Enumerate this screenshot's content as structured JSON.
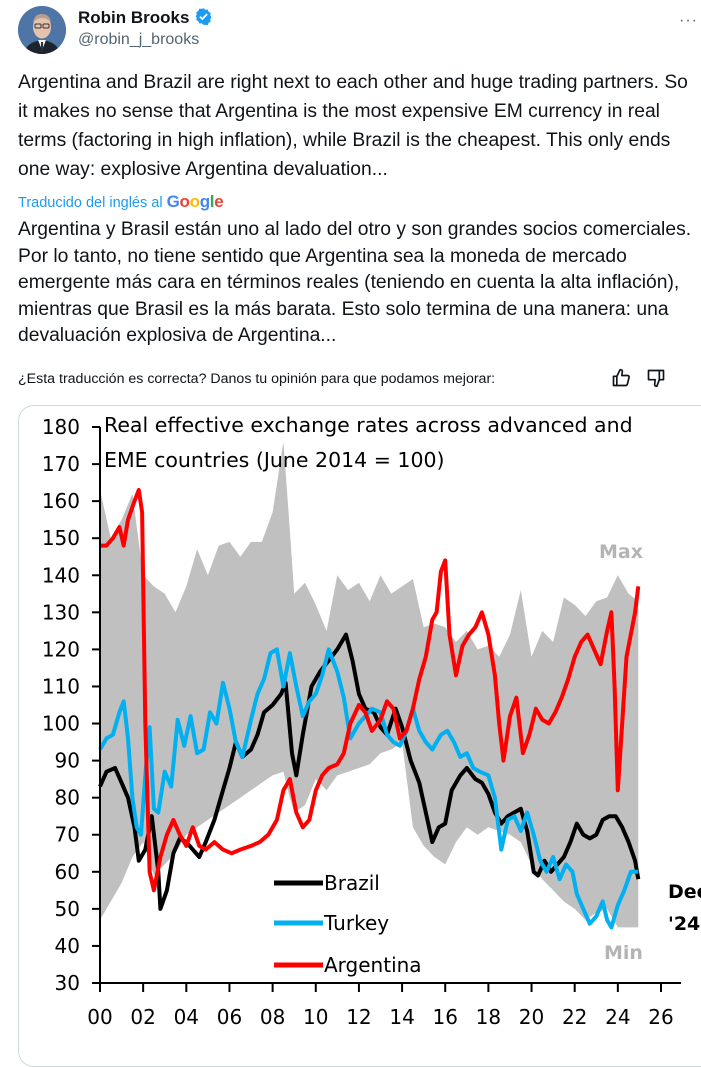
{
  "author": {
    "name": "Robin Brooks",
    "handle": "@robin_j_brooks",
    "verified": true,
    "verified_color": "#1d9bf0"
  },
  "more_menu_label": "···",
  "tweet_text": "Argentina and Brazil are right next to each other and huge trading partners. So it makes no sense that Argentina is the most expensive EM currency in real terms (factoring in high inflation), while Brazil is the cheapest. This only ends one way: explosive Argentina devaluation...",
  "translation": {
    "label": "Traducido del inglés al",
    "provider": "Google",
    "text": "Argentina y Brasil están uno al lado del otro y son grandes socios comerciales. Por lo tanto, no tiene sentido que Argentina sea la moneda de mercado emergente más cara en términos reales (teniendo en cuenta la alta inflación), mientras que Brasil es la más barata. Esto solo termina de una manera: una devaluación explosiva de Argentina...",
    "feedback_prompt": "¿Esta traducción es correcta? Danos tu opinión para que podamos mejorar:",
    "link_color": "#1d9bf0"
  },
  "chart_data": {
    "type": "line",
    "title": "Real effective exchange rates across advanced and EME countries (June 2014 = 100)",
    "title_lines": [
      "Real effective exchange rates across advanced and",
      "EME countries (June 2014 = 100)"
    ],
    "xlabel": "",
    "ylabel": "",
    "xlim": [
      2000,
      2027
    ],
    "ylim": [
      30,
      180
    ],
    "yticks": [
      30,
      40,
      50,
      60,
      70,
      80,
      90,
      100,
      110,
      120,
      130,
      140,
      150,
      160,
      170,
      180
    ],
    "xticks": [
      2000,
      2002,
      2004,
      2006,
      2008,
      2010,
      2012,
      2014,
      2016,
      2018,
      2020,
      2022,
      2024,
      2026
    ],
    "xtick_labels": [
      "00",
      "02",
      "04",
      "06",
      "08",
      "10",
      "12",
      "14",
      "16",
      "18",
      "20",
      "22",
      "24",
      "26"
    ],
    "grid": false,
    "legend_placement": "bottom-center",
    "band": {
      "name": "Max/Min range",
      "color": "#c0c0c0",
      "x": [
        2000,
        2000.5,
        2001,
        2001.5,
        2002,
        2002.5,
        2003,
        2003.5,
        2004,
        2004.5,
        2005,
        2005.5,
        2006,
        2006.5,
        2007,
        2007.5,
        2008,
        2008.5,
        2008.8,
        2009,
        2009.5,
        2010,
        2010.5,
        2011,
        2011.5,
        2012,
        2012.5,
        2013,
        2013.5,
        2014,
        2014.5,
        2015,
        2015.5,
        2016,
        2016.5,
        2017,
        2017.5,
        2018,
        2018.5,
        2019,
        2019.5,
        2020,
        2020.5,
        2021,
        2021.5,
        2022,
        2022.5,
        2023,
        2023.5,
        2024,
        2024.5,
        2024.95
      ],
      "max": [
        163,
        150,
        155,
        162,
        140,
        137,
        135,
        130,
        137,
        147,
        140,
        148,
        149,
        145,
        149,
        149,
        157,
        176,
        152,
        135,
        138,
        132,
        125,
        140,
        136,
        138,
        133,
        140,
        135,
        137,
        139,
        126,
        127,
        126,
        122,
        125,
        120,
        121,
        118,
        124,
        136,
        118,
        125,
        122,
        134,
        132,
        129,
        133,
        134,
        140,
        135,
        133
      ],
      "min": [
        47,
        52,
        57,
        64,
        68,
        59,
        62,
        65,
        70,
        72,
        74,
        76,
        78,
        80,
        82,
        84,
        86,
        87,
        80,
        76,
        78,
        85,
        82,
        86,
        87,
        88,
        89,
        92,
        93,
        95,
        72,
        67,
        64,
        62,
        68,
        72,
        70,
        72,
        71,
        70,
        68,
        62,
        58,
        55,
        52,
        50,
        47,
        49,
        50,
        45,
        45,
        45
      ]
    },
    "series": [
      {
        "name": "Brazil",
        "color": "#000000",
        "x": [
          2000,
          2000.3,
          2000.7,
          2001,
          2001.3,
          2001.6,
          2001.8,
          2002.1,
          2002.4,
          2002.7,
          2002.8,
          2003.1,
          2003.4,
          2003.7,
          2004,
          2004.3,
          2004.6,
          2004.9,
          2005.3,
          2005.6,
          2006,
          2006.3,
          2006.6,
          2007,
          2007.3,
          2007.6,
          2008,
          2008.4,
          2008.6,
          2008.9,
          2009.1,
          2009.4,
          2009.8,
          2010.2,
          2010.6,
          2011,
          2011.4,
          2011.7,
          2012,
          2012.3,
          2012.7,
          2013,
          2013.3,
          2013.7,
          2014,
          2014.4,
          2014.8,
          2015.1,
          2015.4,
          2015.7,
          2016,
          2016.3,
          2016.7,
          2017,
          2017.4,
          2017.7,
          2018,
          2018.3,
          2018.6,
          2018.9,
          2019.2,
          2019.5,
          2019.8,
          2020.1,
          2020.3,
          2020.6,
          2020.9,
          2021.2,
          2021.5,
          2021.8,
          2022.1,
          2022.4,
          2022.7,
          2023,
          2023.3,
          2023.6,
          2023.9,
          2024.2,
          2024.5,
          2024.8,
          2024.95
        ],
        "values": [
          83,
          87,
          88,
          84,
          80,
          72,
          63,
          66,
          75,
          60,
          50,
          55,
          65,
          69,
          68,
          66,
          64,
          68,
          74,
          80,
          88,
          95,
          91,
          93,
          97,
          103,
          105,
          108,
          111,
          92,
          86,
          97,
          110,
          114,
          117,
          120,
          124,
          117,
          108,
          104,
          103,
          99,
          97,
          104,
          99,
          90,
          84,
          76,
          68,
          72,
          73,
          82,
          86,
          88,
          85,
          84,
          81,
          76,
          73,
          75,
          76,
          77,
          71,
          60,
          59,
          63,
          60,
          62,
          64,
          68,
          73,
          70,
          69,
          70,
          74,
          75,
          75,
          72,
          68,
          63,
          58
        ],
        "last_label": "Dec '24"
      },
      {
        "name": "Turkey",
        "color": "#00b0f0",
        "x": [
          2000,
          2000.3,
          2000.6,
          2000.9,
          2001.1,
          2001.3,
          2001.5,
          2001.7,
          2001.9,
          2002.1,
          2002.3,
          2002.5,
          2002.7,
          2003,
          2003.3,
          2003.6,
          2003.9,
          2004.2,
          2004.5,
          2004.8,
          2005.1,
          2005.4,
          2005.7,
          2006,
          2006.3,
          2006.6,
          2007,
          2007.3,
          2007.6,
          2007.9,
          2008.2,
          2008.5,
          2008.8,
          2009.1,
          2009.4,
          2009.7,
          2010,
          2010.3,
          2010.6,
          2011,
          2011.3,
          2011.6,
          2012,
          2012.3,
          2012.6,
          2013,
          2013.3,
          2013.6,
          2013.9,
          2014.2,
          2014.5,
          2014.8,
          2015.1,
          2015.4,
          2015.8,
          2016.1,
          2016.4,
          2016.7,
          2017,
          2017.3,
          2017.6,
          2018,
          2018.3,
          2018.6,
          2018.9,
          2019.2,
          2019.5,
          2019.8,
          2020.1,
          2020.4,
          2020.7,
          2021,
          2021.3,
          2021.6,
          2021.9,
          2022.1,
          2022.4,
          2022.7,
          2023,
          2023.3,
          2023.5,
          2023.7,
          2024,
          2024.3,
          2024.6,
          2024.95
        ],
        "values": [
          93,
          96,
          97,
          103,
          106,
          96,
          80,
          72,
          70,
          86,
          99,
          77,
          76,
          87,
          83,
          101,
          94,
          102,
          92,
          93,
          103,
          100,
          111,
          104,
          95,
          91,
          101,
          108,
          112,
          119,
          120,
          110,
          119,
          110,
          102,
          106,
          108,
          113,
          120,
          114,
          107,
          96,
          100,
          102,
          104,
          103,
          97,
          95,
          94,
          98,
          104,
          98,
          95,
          93,
          97,
          98,
          95,
          91,
          92,
          88,
          87,
          86,
          80,
          66,
          74,
          75,
          71,
          76,
          70,
          63,
          60,
          64,
          58,
          62,
          60,
          54,
          50,
          46,
          48,
          52,
          47,
          45,
          51,
          55,
          60,
          60
        ]
      },
      {
        "name": "Argentina",
        "color": "#ff0000",
        "x": [
          2000,
          2000.3,
          2000.6,
          2000.9,
          2001.1,
          2001.3,
          2001.6,
          2001.8,
          2001.95,
          2002.1,
          2002.3,
          2002.5,
          2002.8,
          2003.1,
          2003.4,
          2003.7,
          2004,
          2004.3,
          2004.6,
          2004.9,
          2005.3,
          2005.7,
          2006.1,
          2006.5,
          2007,
          2007.4,
          2007.8,
          2008.2,
          2008.5,
          2008.8,
          2009.1,
          2009.4,
          2009.7,
          2010,
          2010.3,
          2010.6,
          2011,
          2011.3,
          2011.6,
          2012,
          2012.3,
          2012.6,
          2013,
          2013.3,
          2013.6,
          2013.9,
          2014.2,
          2014.5,
          2014.8,
          2015.1,
          2015.4,
          2015.6,
          2015.8,
          2016,
          2016.2,
          2016.5,
          2016.8,
          2017.1,
          2017.4,
          2017.7,
          2018,
          2018.3,
          2018.5,
          2018.7,
          2019,
          2019.3,
          2019.6,
          2019.9,
          2020.2,
          2020.5,
          2020.8,
          2021.1,
          2021.4,
          2021.7,
          2022,
          2022.3,
          2022.6,
          2022.9,
          2023.2,
          2023.5,
          2023.7,
          2023.85,
          2024,
          2024.2,
          2024.4,
          2024.6,
          2024.8,
          2024.95
        ],
        "values": [
          148,
          148,
          150,
          153,
          148,
          155,
          160,
          163,
          157,
          100,
          60,
          55,
          64,
          70,
          74,
          70,
          67,
          72,
          67,
          66,
          68,
          66,
          65,
          66,
          67,
          68,
          70,
          74,
          82,
          85,
          76,
          72,
          74,
          82,
          86,
          88,
          89,
          92,
          100,
          105,
          103,
          98,
          101,
          106,
          104,
          96,
          98,
          104,
          112,
          118,
          128,
          130,
          141,
          144,
          124,
          113,
          121,
          124,
          126,
          130,
          124,
          113,
          100,
          90,
          102,
          107,
          92,
          97,
          104,
          101,
          100,
          103,
          107,
          112,
          118,
          122,
          124,
          120,
          116,
          125,
          130,
          110,
          82,
          100,
          118,
          124,
          130,
          137
        ]
      }
    ],
    "annotations": [
      {
        "text": "Max",
        "color": "#b4b4b4"
      },
      {
        "text": "Min",
        "color": "#b4b4b4"
      },
      {
        "text": "Dec",
        "color": "#000000"
      },
      {
        "text": "'24",
        "color": "#000000"
      }
    ]
  }
}
